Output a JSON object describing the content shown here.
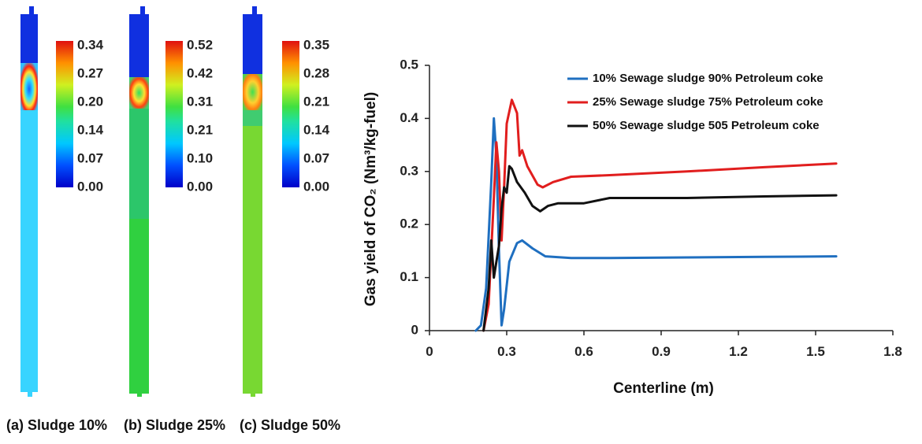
{
  "contours": [
    {
      "caption": "(a) Sludge 10%",
      "colorbar_ticks": [
        "0.34",
        "0.27",
        "0.20",
        "0.14",
        "0.07",
        "0.00"
      ],
      "column_colors": [
        "#1030e0",
        "#1060f0",
        "#ff3010",
        "#30d0ff",
        "#40d8ff"
      ]
    },
    {
      "caption": "(b) Sludge 25%",
      "colorbar_ticks": [
        "0.52",
        "0.42",
        "0.31",
        "0.21",
        "0.10",
        "0.00"
      ],
      "column_colors": [
        "#1030e0",
        "#1060f0",
        "#ffb020",
        "#20c060",
        "#30d040"
      ]
    },
    {
      "caption": "(c) Sludge 50%",
      "colorbar_ticks": [
        "0.35",
        "0.28",
        "0.21",
        "0.14",
        "0.07",
        "0.00"
      ],
      "column_colors": [
        "#1030e0",
        "#1060f0",
        "#ffb020",
        "#40cc50",
        "#70d830"
      ]
    }
  ],
  "chart_data": {
    "type": "line",
    "title": "",
    "xlabel": "Centerline (m)",
    "ylabel": "Gas yield of CO₂ (Nm³/kg-fuel)",
    "xlim": [
      0,
      1.8
    ],
    "ylim": [
      0,
      0.5
    ],
    "x_ticks": [
      0,
      0.3,
      0.6,
      0.9,
      1.2,
      1.5,
      1.8
    ],
    "x_tick_labels": [
      "0",
      "0.3",
      "0.6",
      "0.9",
      "1.2",
      "1.5",
      "1.8"
    ],
    "y_ticks": [
      0,
      0.1,
      0.2,
      0.3,
      0.4,
      0.5
    ],
    "y_tick_labels": [
      "0",
      "0.1",
      "0.2",
      "0.3",
      "0.4",
      "0.5"
    ],
    "legend_position": "top-right",
    "series": [
      {
        "name": "10% Sewage sludge 90% Petroleum coke",
        "color": "#1f6fc0",
        "points": [
          [
            0.18,
            0
          ],
          [
            0.2,
            0.01
          ],
          [
            0.22,
            0.08
          ],
          [
            0.24,
            0.28
          ],
          [
            0.25,
            0.4
          ],
          [
            0.26,
            0.33
          ],
          [
            0.27,
            0.15
          ],
          [
            0.28,
            0.01
          ],
          [
            0.29,
            0.04
          ],
          [
            0.31,
            0.13
          ],
          [
            0.34,
            0.165
          ],
          [
            0.36,
            0.17
          ],
          [
            0.4,
            0.155
          ],
          [
            0.45,
            0.14
          ],
          [
            0.55,
            0.137
          ],
          [
            0.7,
            0.137
          ],
          [
            1.0,
            0.138
          ],
          [
            1.3,
            0.139
          ],
          [
            1.58,
            0.14
          ]
        ]
      },
      {
        "name": "25% Sewage sludge 75% Petroleum coke",
        "color": "#e11e1e",
        "points": [
          [
            0.21,
            0
          ],
          [
            0.23,
            0.05
          ],
          [
            0.25,
            0.25
          ],
          [
            0.26,
            0.355
          ],
          [
            0.27,
            0.3
          ],
          [
            0.28,
            0.17
          ],
          [
            0.29,
            0.27
          ],
          [
            0.3,
            0.39
          ],
          [
            0.32,
            0.435
          ],
          [
            0.34,
            0.41
          ],
          [
            0.35,
            0.33
          ],
          [
            0.36,
            0.34
          ],
          [
            0.38,
            0.31
          ],
          [
            0.42,
            0.275
          ],
          [
            0.44,
            0.27
          ],
          [
            0.48,
            0.28
          ],
          [
            0.55,
            0.29
          ],
          [
            0.7,
            0.293
          ],
          [
            1.0,
            0.3
          ],
          [
            1.3,
            0.308
          ],
          [
            1.58,
            0.315
          ]
        ]
      },
      {
        "name": "50% Sewage sludge 505 Petroleum coke",
        "color": "#111111",
        "points": [
          [
            0.21,
            0
          ],
          [
            0.23,
            0.08
          ],
          [
            0.24,
            0.17
          ],
          [
            0.25,
            0.1
          ],
          [
            0.26,
            0.13
          ],
          [
            0.27,
            0.16
          ],
          [
            0.28,
            0.23
          ],
          [
            0.29,
            0.27
          ],
          [
            0.3,
            0.26
          ],
          [
            0.31,
            0.31
          ],
          [
            0.32,
            0.305
          ],
          [
            0.34,
            0.28
          ],
          [
            0.37,
            0.26
          ],
          [
            0.4,
            0.235
          ],
          [
            0.43,
            0.225
          ],
          [
            0.46,
            0.235
          ],
          [
            0.5,
            0.24
          ],
          [
            0.6,
            0.24
          ],
          [
            0.7,
            0.25
          ],
          [
            1.0,
            0.25
          ],
          [
            1.3,
            0.253
          ],
          [
            1.58,
            0.255
          ]
        ]
      }
    ]
  }
}
